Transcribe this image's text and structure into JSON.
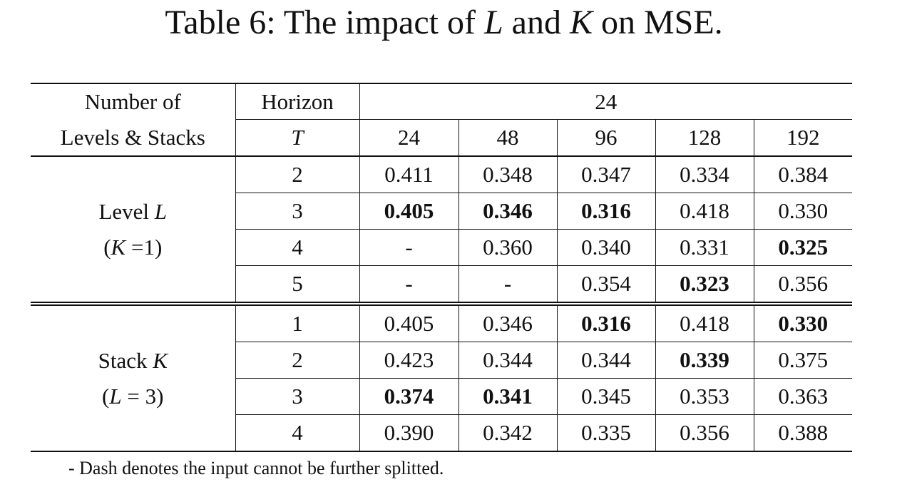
{
  "caption": {
    "prefix": "Table 6: The impact of ",
    "var1": "L",
    "mid": " and ",
    "var2": "K",
    "suffix": " on MSE."
  },
  "header": {
    "corner_line1": "Number of",
    "corner_line2": "Levels & Stacks",
    "horizon_label": "Horizon",
    "horizon_var": "T",
    "span_value": "24",
    "columns": [
      "24",
      "48",
      "96",
      "128",
      "192"
    ]
  },
  "groups": [
    {
      "label_line1_text": "Level ",
      "label_line1_var": "L",
      "label_line2_open": "(",
      "label_line2_var": "K",
      "label_line2_rest": " =1)",
      "rows": [
        {
          "t": "2",
          "cells": [
            {
              "v": "0.411",
              "bold": false
            },
            {
              "v": "0.348",
              "bold": false
            },
            {
              "v": "0.347",
              "bold": false
            },
            {
              "v": "0.334",
              "bold": false
            },
            {
              "v": "0.384",
              "bold": false
            }
          ]
        },
        {
          "t": "3",
          "cells": [
            {
              "v": "0.405",
              "bold": true
            },
            {
              "v": "0.346",
              "bold": true
            },
            {
              "v": "0.316",
              "bold": true
            },
            {
              "v": "0.418",
              "bold": false
            },
            {
              "v": "0.330",
              "bold": false
            }
          ]
        },
        {
          "t": "4",
          "cells": [
            {
              "v": "-",
              "bold": false
            },
            {
              "v": "0.360",
              "bold": false
            },
            {
              "v": "0.340",
              "bold": false
            },
            {
              "v": "0.331",
              "bold": false
            },
            {
              "v": "0.325",
              "bold": true
            }
          ]
        },
        {
          "t": "5",
          "cells": [
            {
              "v": "-",
              "bold": false
            },
            {
              "v": "-",
              "bold": false
            },
            {
              "v": "0.354",
              "bold": false
            },
            {
              "v": "0.323",
              "bold": true
            },
            {
              "v": "0.356",
              "bold": false
            }
          ]
        }
      ]
    },
    {
      "label_line1_text": "Stack ",
      "label_line1_var": "K",
      "label_line2_open": "(",
      "label_line2_var": "L",
      "label_line2_rest": " = 3)",
      "rows": [
        {
          "t": "1",
          "cells": [
            {
              "v": "0.405",
              "bold": false
            },
            {
              "v": "0.346",
              "bold": false
            },
            {
              "v": "0.316",
              "bold": true
            },
            {
              "v": "0.418",
              "bold": false
            },
            {
              "v": "0.330",
              "bold": true
            }
          ]
        },
        {
          "t": "2",
          "cells": [
            {
              "v": "0.423",
              "bold": false
            },
            {
              "v": "0.344",
              "bold": false
            },
            {
              "v": "0.344",
              "bold": false
            },
            {
              "v": "0.339",
              "bold": true
            },
            {
              "v": "0.375",
              "bold": false
            }
          ]
        },
        {
          "t": "3",
          "cells": [
            {
              "v": "0.374",
              "bold": true
            },
            {
              "v": "0.341",
              "bold": true
            },
            {
              "v": "0.345",
              "bold": false
            },
            {
              "v": "0.353",
              "bold": false
            },
            {
              "v": "0.363",
              "bold": false
            }
          ]
        },
        {
          "t": "4",
          "cells": [
            {
              "v": "0.390",
              "bold": false
            },
            {
              "v": "0.342",
              "bold": false
            },
            {
              "v": "0.335",
              "bold": false
            },
            {
              "v": "0.356",
              "bold": false
            },
            {
              "v": "0.388",
              "bold": false
            }
          ]
        }
      ]
    }
  ],
  "footnote": "- Dash denotes the input cannot be further splitted."
}
